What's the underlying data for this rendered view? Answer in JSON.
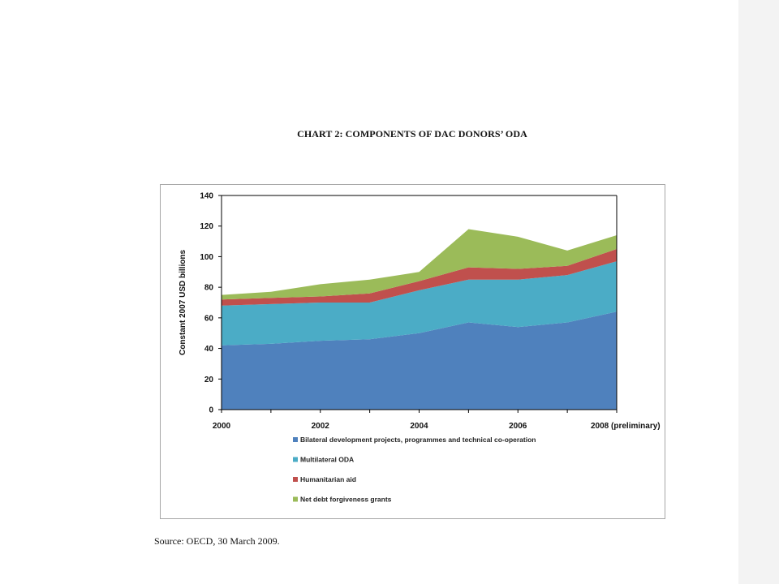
{
  "title": "CHART 2: COMPONENTS OF DAC DONORS’ ODA",
  "source": "Source: OECD, 30 March 2009.",
  "chart_data": {
    "type": "area",
    "stacked": true,
    "ylabel": "Constant 2007 USD billions",
    "xlabel": "",
    "ylim": [
      0,
      140
    ],
    "yticks": [
      0,
      20,
      40,
      60,
      80,
      100,
      120,
      140
    ],
    "x": [
      2000,
      2001,
      2002,
      2003,
      2004,
      2005,
      2006,
      2007,
      2008
    ],
    "xticks": [
      {
        "value": 2000,
        "label": "2000"
      },
      {
        "value": 2002,
        "label": "2002"
      },
      {
        "value": 2004,
        "label": "2004"
      },
      {
        "value": 2006,
        "label": "2006"
      },
      {
        "value": 2008,
        "label": "2008 (preliminary)"
      }
    ],
    "grid": false,
    "legend_position": "bottom",
    "series": [
      {
        "name": "Bilateral development projects, programmes and technical co-operation",
        "color": "#4f81bd",
        "values": [
          42,
          43,
          45,
          46,
          50,
          57,
          54,
          57,
          64
        ]
      },
      {
        "name": "Multilateral ODA",
        "color": "#4bacc6",
        "values": [
          26,
          26,
          25,
          24,
          28,
          28,
          31,
          31,
          33
        ]
      },
      {
        "name": "Humanitarian aid",
        "color": "#c0504d",
        "values": [
          4,
          4,
          4,
          6,
          6,
          8,
          7,
          6,
          8
        ]
      },
      {
        "name": "Net debt forgiveness grants",
        "color": "#9bbb59",
        "values": [
          3,
          4,
          8,
          9,
          6,
          25,
          21,
          10,
          9
        ]
      }
    ]
  }
}
